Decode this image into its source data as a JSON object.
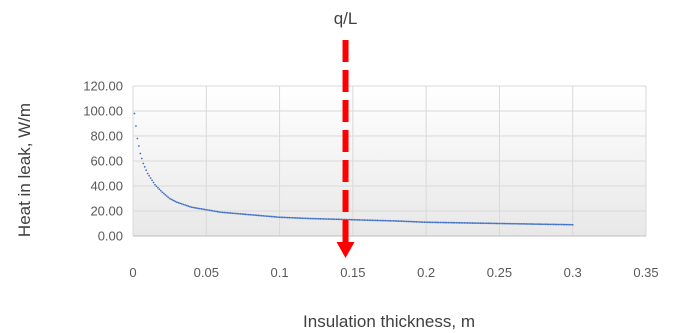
{
  "chart_data": {
    "type": "scatter",
    "xlabel": "Insulation thickness, m",
    "ylabel": "Heat in leak, W/m",
    "xlim": [
      0,
      0.35
    ],
    "ylim": [
      0,
      120
    ],
    "x_ticks": [
      "0",
      "0.05",
      "0.1",
      "0.15",
      "0.2",
      "0.25",
      "0.3",
      "0.35"
    ],
    "y_ticks": [
      "0.00",
      "20.00",
      "40.00",
      "60.00",
      "80.00",
      "100.00",
      "120.00"
    ],
    "grid": true,
    "legend": "none",
    "series": [
      {
        "color": "#4472c4",
        "x": [
          0.001,
          0.002,
          0.003,
          0.005,
          0.007,
          0.01,
          0.015,
          0.02,
          0.025,
          0.03,
          0.04,
          0.05,
          0.06,
          0.08,
          0.1,
          0.12,
          0.15,
          0.18,
          0.2,
          0.25,
          0.3
        ],
        "y": [
          98,
          88,
          78,
          66,
          58,
          50,
          41,
          35,
          30,
          27,
          23,
          21,
          19,
          17,
          15,
          14,
          13,
          12,
          11,
          10,
          9
        ]
      }
    ],
    "annotation": {
      "text": "q/L",
      "x": 0.145,
      "color": "#ff0000"
    }
  }
}
